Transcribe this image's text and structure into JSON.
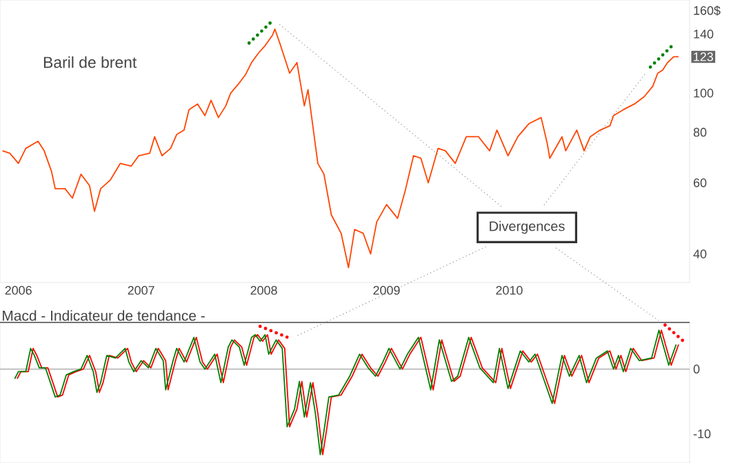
{
  "chart_data": [
    {
      "type": "line",
      "title": "Baril de brent",
      "log": "y",
      "xlim": [
        2005.85,
        2011.47
      ],
      "ylim": [
        34,
        170
      ],
      "xticks": [
        2006,
        2007,
        2008,
        2009,
        2010
      ],
      "yticks": [
        40,
        60,
        80,
        100,
        140,
        {
          "value": 160,
          "label": "160$"
        }
      ],
      "x": [
        2005.87,
        2005.93,
        2006.0,
        2006.06,
        2006.16,
        2006.21,
        2006.27,
        2006.3,
        2006.38,
        2006.44,
        2006.51,
        2006.58,
        2006.62,
        2006.67,
        2006.75,
        2006.83,
        2006.92,
        2006.98,
        2007.07,
        2007.11,
        2007.17,
        2007.24,
        2007.29,
        2007.35,
        2007.39,
        2007.46,
        2007.52,
        2007.57,
        2007.63,
        2007.69,
        2007.73,
        2007.8,
        2007.85,
        2007.9,
        2007.96,
        2008.01,
        2008.07,
        2008.09,
        2008.13,
        2008.21,
        2008.27,
        2008.33,
        2008.36,
        2008.44,
        2008.49,
        2008.55,
        2008.63,
        2008.69,
        2008.74,
        2008.81,
        2008.87,
        2008.92,
        2009.0,
        2009.09,
        2009.15,
        2009.22,
        2009.28,
        2009.34,
        2009.42,
        2009.48,
        2009.56,
        2009.65,
        2009.75,
        2009.84,
        2009.9,
        2009.99,
        2010.07,
        2010.16,
        2010.26,
        2010.31,
        2010.33,
        2010.43,
        2010.46,
        2010.55,
        2010.61,
        2010.66,
        2010.74,
        2010.82,
        2010.85,
        2010.93,
        2011.02,
        2011.1,
        2011.17,
        2011.21,
        2011.25,
        2011.29,
        2011.34,
        2011.38
      ],
      "series": [
        {
          "color": "#ff4500",
          "values": [
            72,
            71,
            67,
            73,
            76,
            72,
            64,
            58,
            58,
            55,
            63,
            59,
            51,
            58,
            61,
            67,
            66,
            70,
            71,
            78,
            70,
            73,
            79,
            81,
            91,
            94,
            88,
            96,
            87,
            93,
            100,
            106,
            111,
            119,
            126,
            131,
            139,
            144,
            133,
            112,
            119,
            93,
            102,
            67,
            63,
            50,
            45,
            37,
            46,
            45,
            40,
            48,
            53,
            49,
            57,
            70,
            69,
            60,
            73,
            72,
            67,
            78,
            78,
            72,
            81,
            70,
            78,
            84,
            87,
            75,
            69,
            78,
            72,
            81,
            72,
            78,
            81,
            83,
            88,
            91,
            94,
            98,
            104,
            112,
            114,
            119,
            123,
            123
          ]
        },
        {
          "color": "#008000",
          "line_style": "dotted",
          "x": [
            2007.88,
            2008.08
          ],
          "values": [
            133,
            152
          ]
        },
        {
          "color": "#008000",
          "line_style": "dotted",
          "x": [
            2011.15,
            2011.35
          ],
          "values": [
            116,
            133
          ]
        }
      ],
      "annotations": [
        {
          "text": "123",
          "x": 2011.38,
          "y": 123
        },
        "Divergences"
      ]
    },
    {
      "type": "line",
      "title": "Macd - Indicateur de tendance -",
      "tick_labels": "y",
      "xlim": [
        2005.85,
        2011.47
      ],
      "ylim": [
        -14.5,
        7.2
      ],
      "yticks": [
        -10,
        0
      ],
      "ref_lines": [
        {
          "axis": "y",
          "value": 0,
          "color": "#c0c0c0"
        }
      ],
      "x": [
        2005.97,
        2006.0,
        2006.06,
        2006.1,
        2006.13,
        2006.17,
        2006.22,
        2006.27,
        2006.3,
        2006.34,
        2006.39,
        2006.45,
        2006.51,
        2006.56,
        2006.61,
        2006.64,
        2006.67,
        2006.72,
        2006.79,
        2006.87,
        2006.9,
        2006.94,
        2007.0,
        2007.06,
        2007.12,
        2007.18,
        2007.2,
        2007.26,
        2007.29,
        2007.35,
        2007.43,
        2007.48,
        2007.52,
        2007.6,
        2007.65,
        2007.71,
        2007.74,
        2007.8,
        2007.84,
        2007.9,
        2007.93,
        2007.97,
        2008.01,
        2008.04,
        2008.1,
        2008.15,
        2008.19,
        2008.25,
        2008.29,
        2008.33,
        2008.38,
        2008.42,
        2008.46,
        2008.49,
        2008.53,
        2008.61,
        2008.7,
        2008.78,
        2008.85,
        2008.91,
        2008.97,
        2009.02,
        2009.11,
        2009.17,
        2009.26,
        2009.36,
        2009.43,
        2009.53,
        2009.58,
        2009.67,
        2009.76,
        2009.87,
        2009.92,
        2009.99,
        2010.09,
        2010.16,
        2010.21,
        2010.35,
        2010.43,
        2010.49,
        2010.57,
        2010.63,
        2010.71,
        2010.8,
        2010.85,
        2010.89,
        2010.93,
        2010.99,
        2011.06,
        2011.16,
        2011.22,
        2011.3,
        2011.36
      ],
      "series": [
        {
          "color": "#ff0000",
          "x": [
            2005.99,
            2006.02,
            2006.08,
            2006.12,
            2006.15,
            2006.19,
            2006.24,
            2006.29,
            2006.32,
            2006.36,
            2006.41,
            2006.47,
            2006.53,
            2006.58,
            2006.63,
            2006.66,
            2006.69,
            2006.74,
            2006.81,
            2006.89,
            2006.92,
            2006.96,
            2007.02,
            2007.08,
            2007.14,
            2007.2,
            2007.22,
            2007.28,
            2007.31,
            2007.37,
            2007.45,
            2007.5,
            2007.54,
            2007.62,
            2007.67,
            2007.73,
            2007.76,
            2007.82,
            2007.86,
            2007.92,
            2007.95,
            2007.99,
            2008.03,
            2008.06,
            2008.12,
            2008.17,
            2008.21,
            2008.27,
            2008.31,
            2008.35,
            2008.4,
            2008.44,
            2008.48,
            2008.51,
            2008.55,
            2008.63,
            2008.72,
            2008.8,
            2008.87,
            2008.93,
            2008.99,
            2009.04,
            2009.13,
            2009.19,
            2009.28,
            2009.38,
            2009.45,
            2009.55,
            2009.6,
            2009.69,
            2009.78,
            2009.89,
            2009.94,
            2010.01,
            2010.11,
            2010.18,
            2010.23,
            2010.37,
            2010.45,
            2010.51,
            2010.59,
            2010.65,
            2010.73,
            2010.82,
            2010.87,
            2010.91,
            2010.95,
            2011.01,
            2011.08,
            2011.18,
            2011.24,
            2011.32,
            2011.38
          ],
          "values": [
            -1.5,
            -0.4,
            -0.4,
            3.2,
            2.1,
            0.2,
            0.2,
            -2.6,
            -4.3,
            -4.0,
            -0.9,
            -0.4,
            0,
            2.1,
            -0.4,
            -3.6,
            -2.1,
            2.1,
            1.7,
            3.2,
            1.1,
            -0.4,
            1.3,
            0.2,
            3.2,
            1.3,
            -3.2,
            1.3,
            3.2,
            1.1,
            4.9,
            1.1,
            0,
            2.3,
            -2.1,
            3.4,
            4.5,
            3.4,
            0.6,
            4.9,
            5.3,
            4.3,
            5.3,
            2.3,
            4.5,
            3.2,
            -8.9,
            -6.2,
            -1.9,
            -7.4,
            -2.1,
            -6.8,
            -13.2,
            -9.6,
            -4.3,
            -4.0,
            -1.1,
            2.3,
            0.2,
            -1.1,
            1.1,
            3.2,
            0,
            2.3,
            4.9,
            -3.2,
            4.5,
            -1.9,
            -1.1,
            4.9,
            0.2,
            -2.1,
            3.2,
            -3.0,
            2.8,
            1.1,
            2.3,
            -5.3,
            2.1,
            -1.1,
            2.1,
            -2.1,
            1.7,
            2.8,
            0,
            2.1,
            -0.4,
            3.2,
            1.3,
            1.7,
            6.0,
            0.6,
            3.8
          ]
        },
        {
          "color": "#008000",
          "values": [
            -1.5,
            -0.4,
            -0.4,
            3.2,
            2.1,
            0.2,
            0.2,
            -2.6,
            -4.3,
            -4.0,
            -0.9,
            -0.4,
            0,
            2.1,
            -0.4,
            -3.6,
            -2.1,
            2.1,
            1.7,
            3.2,
            1.1,
            -0.4,
            1.3,
            0.2,
            3.2,
            1.3,
            -3.2,
            1.3,
            3.2,
            1.1,
            4.9,
            1.1,
            0,
            2.3,
            -2.1,
            3.4,
            4.5,
            3.4,
            0.6,
            4.9,
            5.3,
            4.3,
            5.3,
            2.3,
            4.5,
            3.2,
            -8.9,
            -6.2,
            -1.9,
            -7.4,
            -2.1,
            -6.8,
            -13.2,
            -9.6,
            -4.3,
            -4.0,
            -1.1,
            2.3,
            0.2,
            -1.1,
            1.1,
            3.2,
            0,
            2.3,
            4.9,
            -3.2,
            4.5,
            -1.9,
            -1.1,
            4.9,
            0.2,
            -2.1,
            3.2,
            -3.0,
            2.8,
            1.1,
            2.3,
            -5.3,
            2.1,
            -1.1,
            2.1,
            -2.1,
            1.7,
            2.8,
            0,
            2.1,
            -0.4,
            3.2,
            1.3,
            1.7,
            6.0,
            0.6,
            3.8
          ]
        },
        {
          "color": "#ff0000",
          "line_style": "dotted",
          "x": [
            2007.97,
            2008.22
          ],
          "values": [
            6.6,
            4.7
          ]
        },
        {
          "color": "#ff0000",
          "line_style": "dotted",
          "x": [
            2011.27,
            2011.42
          ],
          "values": [
            6.8,
            4.3
          ]
        }
      ]
    }
  ]
}
